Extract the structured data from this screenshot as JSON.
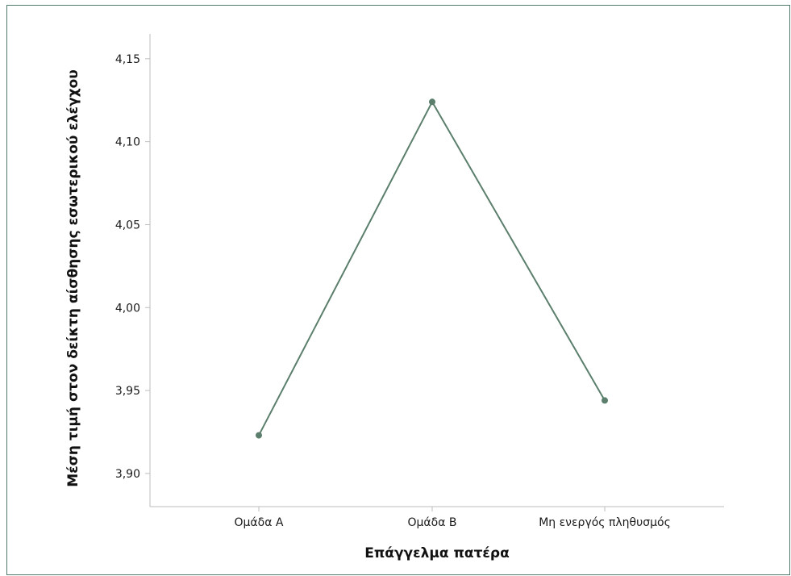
{
  "chart_data": {
    "type": "line",
    "categories": [
      "Ομάδα Α",
      "Ομάδα Β",
      "Μη ενεργός πληθυσμός"
    ],
    "series": [
      {
        "values": [
          3.923,
          4.124,
          3.944
        ]
      }
    ],
    "xlabel": "Επάγγελμα πατέρα",
    "ylabel": "Μέση τιμή στον δείκτη αίσθησης εσωτερικού ελέγχου",
    "ylim": [
      3.88,
      4.165
    ],
    "yticks": [
      3.9,
      3.95,
      4.0,
      4.05,
      4.1,
      4.15
    ],
    "ytick_labels": [
      "3,90",
      "3,95",
      "4,00",
      "4,05",
      "4,10",
      "4,15"
    ],
    "grid": false,
    "line_color": "#5b7f6c"
  }
}
